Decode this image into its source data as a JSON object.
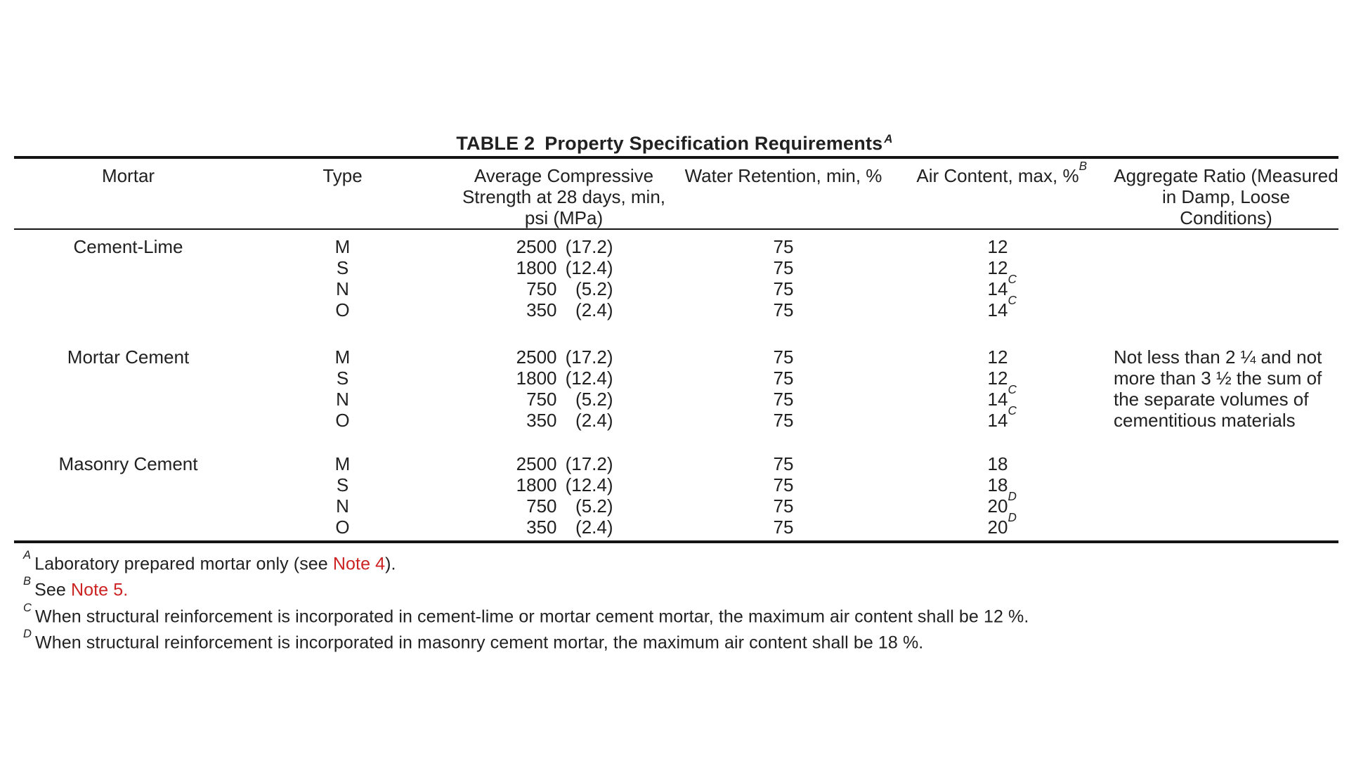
{
  "page": {
    "background": "#ffffff",
    "text_color": "#212121",
    "rule_color": "#141414",
    "red_color": "#cc2222"
  },
  "title": {
    "label": "TABLE 2",
    "text": "Property Specification Requirements",
    "superscript": "A"
  },
  "table": {
    "headers": {
      "mortar": "Mortar",
      "type": "Type",
      "strength_lines": [
        "Average Compressive",
        "Strength at 28 days, min,",
        "psi (MPa)"
      ],
      "water": "Water Retention, min, %",
      "air": "Air Content, max, %",
      "air_superscript": "B",
      "aggregate_lines": [
        "Aggregate Ratio (Measured",
        "in Damp, Loose",
        "Conditions)"
      ]
    },
    "groups": [
      {
        "mortar": "Cement-Lime",
        "rows": [
          {
            "type": "M",
            "strength_psi": "2500",
            "strength_mpa": "(17.2)",
            "water": "75",
            "air": "12",
            "air_superscript": ""
          },
          {
            "type": "S",
            "strength_psi": "1800",
            "strength_mpa": "(12.4)",
            "water": "75",
            "air": "12",
            "air_superscript": ""
          },
          {
            "type": "N",
            "strength_psi": "750",
            "strength_mpa": "(5.2)",
            "water": "75",
            "air": "14",
            "air_superscript": "C"
          },
          {
            "type": "O",
            "strength_psi": "350",
            "strength_mpa": "(2.4)",
            "water": "75",
            "air": "14",
            "air_superscript": "C"
          }
        ]
      },
      {
        "mortar": "Mortar Cement",
        "rows": [
          {
            "type": "M",
            "strength_psi": "2500",
            "strength_mpa": "(17.2)",
            "water": "75",
            "air": "12",
            "air_superscript": ""
          },
          {
            "type": "S",
            "strength_psi": "1800",
            "strength_mpa": "(12.4)",
            "water": "75",
            "air": "12",
            "air_superscript": ""
          },
          {
            "type": "N",
            "strength_psi": "750",
            "strength_mpa": "(5.2)",
            "water": "75",
            "air": "14",
            "air_superscript": "C"
          },
          {
            "type": "O",
            "strength_psi": "350",
            "strength_mpa": "(2.4)",
            "water": "75",
            "air": "14",
            "air_superscript": "C"
          }
        ],
        "aggregate_lines": [
          "Not less than 2 ¼ and not",
          "more than 3 ½ the sum of",
          "the separate volumes of",
          "cementitious materials"
        ]
      },
      {
        "mortar": "Masonry Cement",
        "rows": [
          {
            "type": "M",
            "strength_psi": "2500",
            "strength_mpa": "(17.2)",
            "water": "75",
            "air": "18",
            "air_superscript": ""
          },
          {
            "type": "S",
            "strength_psi": "1800",
            "strength_mpa": "(12.4)",
            "water": "75",
            "air": "18",
            "air_superscript": ""
          },
          {
            "type": "N",
            "strength_psi": "750",
            "strength_mpa": "(5.2)",
            "water": "75",
            "air": "20",
            "air_superscript": "D"
          },
          {
            "type": "O",
            "strength_psi": "350",
            "strength_mpa": "(2.4)",
            "water": "75",
            "air": "20",
            "air_superscript": "D"
          }
        ]
      }
    ]
  },
  "footnotes": [
    {
      "sup": "A",
      "parts": [
        "Laboratory prepared mortar only (see ",
        "Note 4",
        ")."
      ]
    },
    {
      "sup": "B",
      "parts": [
        "See ",
        "Note 5.",
        ""
      ]
    },
    {
      "sup": "C",
      "parts": [
        "When structural reinforcement is incorporated in cement-lime or mortar cement mortar, the maximum air content shall be 12 %.",
        "",
        ""
      ]
    },
    {
      "sup": "D",
      "parts": [
        "When structural reinforcement is incorporated in masonry cement mortar, the maximum air content shall be 18 %.",
        "",
        ""
      ]
    }
  ]
}
